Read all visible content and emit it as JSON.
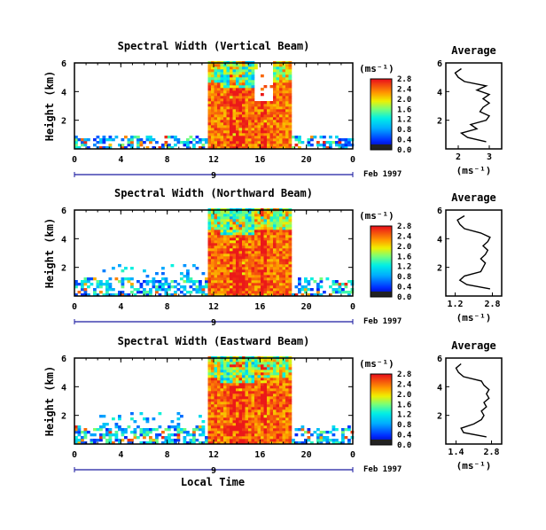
{
  "chart_data": {
    "type": "heatmap",
    "xlabel": "Local Time",
    "date_label": "Feb 1997",
    "day_label": "9",
    "colorbar_unit": "(ms⁻¹)",
    "xlim": [
      0,
      24
    ],
    "ylim_km": [
      0,
      6
    ],
    "x_ticks": [
      "0",
      "4",
      "8",
      "12",
      "16",
      "20",
      "0"
    ],
    "y_ticks": [
      "2",
      "4",
      "6"
    ],
    "panels": [
      {
        "id": "vertical",
        "title": "Spectral Width (Vertical Beam)",
        "ylabel": "Height (km)",
        "colorbar_ticks": [
          "0.0",
          "0.4",
          "0.8",
          "1.2",
          "1.6",
          "2.0",
          "2.4",
          "2.8"
        ],
        "average": {
          "title": "Average",
          "xlabel": "(ms⁻¹)",
          "x_ticks": [
            "2",
            "3"
          ],
          "heights_km": [
            0.5,
            0.8,
            1.1,
            1.4,
            1.7,
            2.0,
            2.3,
            2.6,
            2.9,
            3.2,
            3.5,
            3.8,
            4.1,
            4.4,
            4.7,
            5.0,
            5.3,
            5.6
          ],
          "values": [
            2.9,
            2.3,
            2.1,
            2.6,
            2.4,
            2.9,
            3.0,
            2.7,
            2.8,
            3.0,
            2.8,
            3.0,
            2.6,
            2.9,
            2.2,
            2.0,
            1.9,
            2.1
          ]
        }
      },
      {
        "id": "northward",
        "title": "Spectral Width (Northward Beam)",
        "ylabel": "Height (km)",
        "colorbar_ticks": [
          "0.0",
          "0.4",
          "0.8",
          "1.2",
          "1.6",
          "2.0",
          "2.4",
          "2.8"
        ],
        "average": {
          "title": "Average",
          "xlabel": "(ms⁻¹)",
          "x_ticks": [
            "1.2",
            "2.8"
          ],
          "heights_km": [
            0.5,
            0.8,
            1.1,
            1.4,
            1.7,
            2.0,
            2.3,
            2.6,
            2.9,
            3.2,
            3.5,
            3.8,
            4.1,
            4.4,
            4.7,
            5.0,
            5.3,
            5.6
          ],
          "values": [
            2.7,
            1.7,
            1.4,
            1.6,
            2.3,
            2.4,
            2.5,
            2.3,
            2.5,
            2.6,
            2.4,
            2.6,
            2.7,
            2.3,
            1.6,
            1.4,
            1.3,
            1.6
          ]
        }
      },
      {
        "id": "eastward",
        "title": "Spectral Width (Eastward Beam)",
        "ylabel": "Height (km)",
        "colorbar_ticks": [
          "0.0",
          "0.4",
          "0.8",
          "1.2",
          "1.6",
          "2.0",
          "2.4",
          "2.8"
        ],
        "average": {
          "title": "Average",
          "xlabel": "(ms⁻¹)",
          "x_ticks": [
            "1.4",
            "2.8"
          ],
          "heights_km": [
            0.5,
            0.8,
            1.1,
            1.4,
            1.7,
            2.0,
            2.3,
            2.6,
            2.9,
            3.2,
            3.5,
            3.8,
            4.1,
            4.4,
            4.7,
            5.0,
            5.3,
            5.6
          ],
          "values": [
            2.6,
            1.7,
            1.6,
            2.1,
            2.4,
            2.5,
            2.4,
            2.6,
            2.5,
            2.7,
            2.6,
            2.7,
            2.5,
            2.4,
            1.7,
            1.5,
            1.4,
            1.6
          ]
        }
      }
    ]
  }
}
